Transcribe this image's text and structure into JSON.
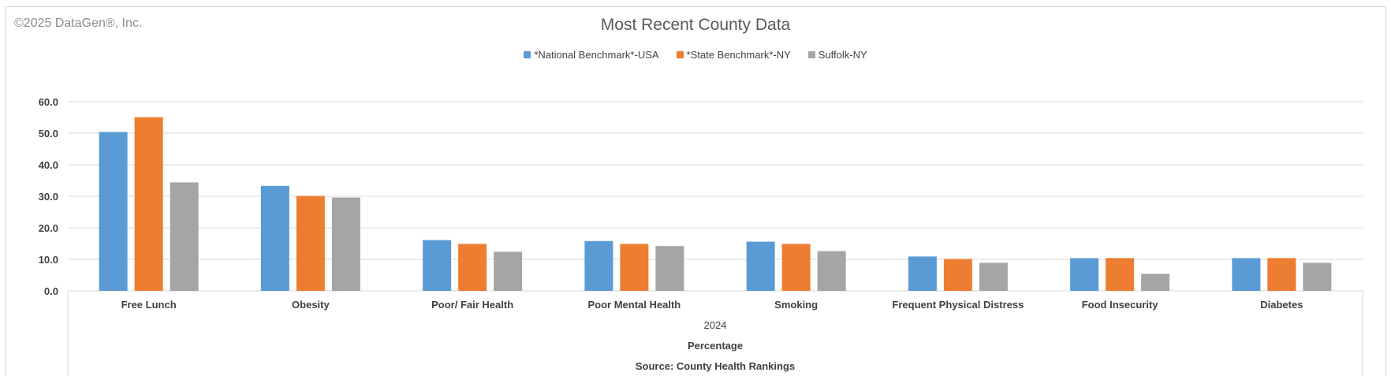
{
  "copyright": "©2025 DataGen®, Inc.",
  "colors": {
    "national": "#5b9bd5",
    "state": "#ed7d31",
    "county": "#a5a5a5",
    "gridline": "#d9d9d9",
    "text": "#404040"
  },
  "chart_data": {
    "type": "bar",
    "title": "Most Recent County Data",
    "categories": [
      "Free Lunch",
      "Obesity",
      "Poor/ Fair Health",
      "Poor Mental Health",
      "Smoking",
      "Frequent Physical Distress",
      "Food Insecurity",
      "Diabetes"
    ],
    "series": [
      {
        "name": "*National Benchmark*-USA",
        "values": [
          50.4,
          33.3,
          16.1,
          15.8,
          15.6,
          10.9,
          10.4,
          10.4
        ]
      },
      {
        "name": "*State Benchmark*-NY",
        "values": [
          55.1,
          30.1,
          14.9,
          14.9,
          14.9,
          10.1,
          10.4,
          10.4
        ]
      },
      {
        "name": "Suffolk-NY",
        "values": [
          34.4,
          29.6,
          12.4,
          14.2,
          12.6,
          8.9,
          5.4,
          8.9
        ]
      }
    ],
    "ylim": [
      0,
      60
    ],
    "yticks": [
      "0.0",
      "10.0",
      "20.0",
      "30.0",
      "40.0",
      "50.0",
      "60.0"
    ],
    "grid": true,
    "legend_position": "top",
    "x_axis_group_labels": [
      "2024",
      "Percentage",
      "Source: County Health Rankings"
    ]
  }
}
